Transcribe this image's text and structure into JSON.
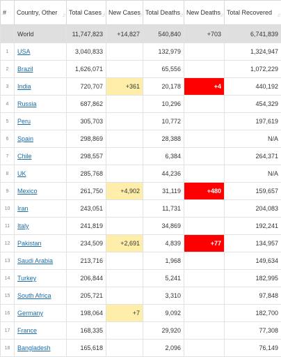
{
  "columns": [
    {
      "label": "#",
      "sortable": false
    },
    {
      "label": "Country, Other",
      "sortable": true
    },
    {
      "label": "Total Cases",
      "sortable": true
    },
    {
      "label": "New Cases",
      "sortable": true
    },
    {
      "label": "Total Deaths",
      "sortable": true
    },
    {
      "label": "New Deaths",
      "sortable": true
    },
    {
      "label": "Total Recovered",
      "sortable": true
    }
  ],
  "sort_icon": "sort-arrows-icon",
  "highlight_colors": {
    "new_cases": "#ffeeaa",
    "new_deaths": "#ff0000",
    "world_row": "#dfdfdf",
    "link": "#1a6ca8"
  },
  "world": {
    "rank": "",
    "country": "World",
    "total_cases": "11,747,823",
    "new_cases": "+14,827",
    "total_deaths": "540,840",
    "new_deaths": "+703",
    "total_recovered": "6,741,839"
  },
  "rows": [
    {
      "rank": "1",
      "country": "USA",
      "total_cases": "3,040,833",
      "new_cases": "",
      "total_deaths": "132,979",
      "new_deaths": "",
      "total_recovered": "1,324,947"
    },
    {
      "rank": "2",
      "country": "Brazil",
      "total_cases": "1,626,071",
      "new_cases": "",
      "total_deaths": "65,556",
      "new_deaths": "",
      "total_recovered": "1,072,229"
    },
    {
      "rank": "3",
      "country": "India",
      "total_cases": "720,707",
      "new_cases": "+361",
      "total_deaths": "20,178",
      "new_deaths": "+4",
      "total_recovered": "440,192"
    },
    {
      "rank": "4",
      "country": "Russia",
      "total_cases": "687,862",
      "new_cases": "",
      "total_deaths": "10,296",
      "new_deaths": "",
      "total_recovered": "454,329"
    },
    {
      "rank": "5",
      "country": "Peru",
      "total_cases": "305,703",
      "new_cases": "",
      "total_deaths": "10,772",
      "new_deaths": "",
      "total_recovered": "197,619"
    },
    {
      "rank": "6",
      "country": "Spain",
      "total_cases": "298,869",
      "new_cases": "",
      "total_deaths": "28,388",
      "new_deaths": "",
      "total_recovered": "N/A"
    },
    {
      "rank": "7",
      "country": "Chile",
      "total_cases": "298,557",
      "new_cases": "",
      "total_deaths": "6,384",
      "new_deaths": "",
      "total_recovered": "264,371"
    },
    {
      "rank": "8",
      "country": "UK",
      "total_cases": "285,768",
      "new_cases": "",
      "total_deaths": "44,236",
      "new_deaths": "",
      "total_recovered": "N/A"
    },
    {
      "rank": "9",
      "country": "Mexico",
      "total_cases": "261,750",
      "new_cases": "+4,902",
      "total_deaths": "31,119",
      "new_deaths": "+480",
      "total_recovered": "159,657"
    },
    {
      "rank": "10",
      "country": "Iran",
      "total_cases": "243,051",
      "new_cases": "",
      "total_deaths": "11,731",
      "new_deaths": "",
      "total_recovered": "204,083"
    },
    {
      "rank": "11",
      "country": "Italy",
      "total_cases": "241,819",
      "new_cases": "",
      "total_deaths": "34,869",
      "new_deaths": "",
      "total_recovered": "192,241"
    },
    {
      "rank": "12",
      "country": "Pakistan",
      "total_cases": "234,509",
      "new_cases": "+2,691",
      "total_deaths": "4,839",
      "new_deaths": "+77",
      "total_recovered": "134,957"
    },
    {
      "rank": "13",
      "country": "Saudi Arabia",
      "total_cases": "213,716",
      "new_cases": "",
      "total_deaths": "1,968",
      "new_deaths": "",
      "total_recovered": "149,634"
    },
    {
      "rank": "14",
      "country": "Turkey",
      "total_cases": "206,844",
      "new_cases": "",
      "total_deaths": "5,241",
      "new_deaths": "",
      "total_recovered": "182,995"
    },
    {
      "rank": "15",
      "country": "South Africa",
      "total_cases": "205,721",
      "new_cases": "",
      "total_deaths": "3,310",
      "new_deaths": "",
      "total_recovered": "97,848"
    },
    {
      "rank": "16",
      "country": "Germany",
      "total_cases": "198,064",
      "new_cases": "+7",
      "total_deaths": "9,092",
      "new_deaths": "",
      "total_recovered": "182,700"
    },
    {
      "rank": "17",
      "country": "France",
      "total_cases": "168,335",
      "new_cases": "",
      "total_deaths": "29,920",
      "new_deaths": "",
      "total_recovered": "77,308"
    },
    {
      "rank": "18",
      "country": "Bangladesh",
      "total_cases": "165,618",
      "new_cases": "",
      "total_deaths": "2,096",
      "new_deaths": "",
      "total_recovered": "76,149"
    }
  ]
}
